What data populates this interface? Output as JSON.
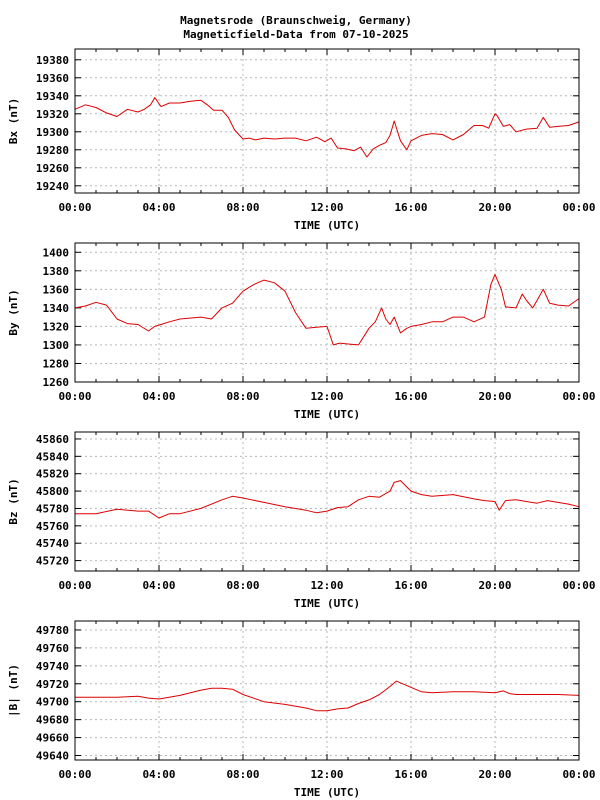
{
  "title_line1": "Magnetsrode (Braunschweig, Germany)",
  "title_line2": "Magneticfield-Data from 07-10-2025",
  "trace_color": "#dd0000",
  "chart_data": [
    {
      "type": "line",
      "ylabel": "Bx (nT)",
      "xlabel": "TIME (UTC)",
      "xticks": [
        "00:00",
        "04:00",
        "08:00",
        "12:00",
        "16:00",
        "20:00",
        "00:00"
      ],
      "xlim": [
        0,
        24
      ],
      "ylim": [
        19232,
        19392
      ],
      "yticks": [
        19240,
        19260,
        19280,
        19300,
        19320,
        19340,
        19360,
        19380
      ],
      "x": [
        0,
        0.5,
        1,
        1.5,
        2,
        2.5,
        3,
        3.3,
        3.6,
        3.8,
        4.1,
        4.5,
        5,
        5.5,
        6,
        6.3,
        6.6,
        7,
        7.3,
        7.6,
        8,
        8.3,
        8.6,
        9,
        9.5,
        10,
        10.5,
        11,
        11.5,
        11.9,
        12.2,
        12.5,
        12.9,
        13.3,
        13.6,
        13.9,
        14.2,
        14.5,
        14.8,
        15,
        15.2,
        15.5,
        15.8,
        16,
        16.5,
        17,
        17.5,
        18,
        18.5,
        19,
        19.4,
        19.7,
        20,
        20.1,
        20.4,
        20.7,
        21,
        21.5,
        22,
        22.3,
        22.6,
        23,
        23.5,
        24
      ],
      "y": [
        19325,
        19330,
        19327,
        19321,
        19317,
        19325,
        19322,
        19325,
        19330,
        19338,
        19328,
        19332,
        19332,
        19334,
        19335,
        19330,
        19324,
        19324,
        19316,
        19302,
        19292,
        19293,
        19291,
        19293,
        19292,
        19293,
        19293,
        19290,
        19294,
        19289,
        19293,
        19282,
        19281,
        19279,
        19283,
        19272,
        19281,
        19285,
        19288,
        19296,
        19312,
        19290,
        19280,
        19290,
        19296,
        19298,
        19297,
        19291,
        19297,
        19307,
        19307,
        19304,
        19320,
        19318,
        19306,
        19308,
        19300,
        19303,
        19304,
        19316,
        19305,
        19306,
        19307,
        19311
      ],
      "grid": true
    },
    {
      "type": "line",
      "ylabel": "By (nT)",
      "xlabel": "TIME (UTC)",
      "xticks": [
        "00:00",
        "04:00",
        "08:00",
        "12:00",
        "16:00",
        "20:00",
        "00:00"
      ],
      "xlim": [
        0,
        24
      ],
      "ylim": [
        1260,
        1410
      ],
      "yticks": [
        1260,
        1280,
        1300,
        1320,
        1340,
        1360,
        1380,
        1400
      ],
      "x": [
        0,
        0.5,
        1,
        1.5,
        2,
        2.5,
        3,
        3.5,
        3.8,
        4.1,
        4.5,
        5,
        6,
        6.5,
        7,
        7.5,
        8,
        8.5,
        9,
        9.5,
        10,
        10.5,
        11,
        11.5,
        12,
        12.3,
        12.6,
        13,
        13.5,
        14,
        14.3,
        14.6,
        14.8,
        15,
        15.2,
        15.5,
        15.8,
        16,
        16.5,
        17,
        17.5,
        18,
        18.5,
        19,
        19.5,
        19.8,
        20,
        20.3,
        20.5,
        21,
        21.3,
        21.5,
        21.8,
        22,
        22.3,
        22.6,
        23,
        23.5,
        24
      ],
      "y": [
        1340,
        1342,
        1346,
        1343,
        1328,
        1323,
        1322,
        1315,
        1320,
        1322,
        1325,
        1328,
        1330,
        1328,
        1340,
        1345,
        1358,
        1365,
        1370,
        1367,
        1358,
        1335,
        1318,
        1319,
        1320,
        1300,
        1302,
        1301,
        1300,
        1318,
        1325,
        1340,
        1328,
        1322,
        1330,
        1313,
        1318,
        1320,
        1322,
        1325,
        1325,
        1330,
        1330,
        1325,
        1330,
        1365,
        1376,
        1360,
        1341,
        1340,
        1355,
        1348,
        1340,
        1348,
        1360,
        1345,
        1343,
        1342,
        1350
      ],
      "grid": true
    },
    {
      "type": "line",
      "ylabel": "Bz (nT)",
      "xlabel": "TIME (UTC)",
      "xticks": [
        "00:00",
        "04:00",
        "08:00",
        "12:00",
        "16:00",
        "20:00",
        "00:00"
      ],
      "xlim": [
        0,
        24
      ],
      "ylim": [
        45708,
        45868
      ],
      "yticks": [
        45720,
        45740,
        45760,
        45780,
        45800,
        45820,
        45840,
        45860
      ],
      "x": [
        0,
        1,
        2,
        3,
        3.5,
        4,
        4.5,
        5,
        6,
        7,
        7.5,
        8,
        9,
        10,
        11,
        11.5,
        12,
        12.5,
        13,
        13.5,
        14,
        14.5,
        15,
        15.2,
        15.5,
        16,
        16.5,
        17,
        18,
        19,
        19.5,
        20,
        20.2,
        20.5,
        21,
        21.5,
        22,
        22.5,
        23,
        23.5,
        24
      ],
      "y": [
        45774,
        45774,
        45779,
        45777,
        45777,
        45769,
        45774,
        45774,
        45780,
        45790,
        45794,
        45792,
        45787,
        45782,
        45778,
        45775,
        45777,
        45781,
        45782,
        45790,
        45794,
        45793,
        45800,
        45810,
        45812,
        45800,
        45796,
        45794,
        45796,
        45791,
        45789,
        45788,
        45778,
        45789,
        45790,
        45788,
        45786,
        45789,
        45787,
        45785,
        45782
      ],
      "grid": true
    },
    {
      "type": "line",
      "ylabel": "|B| (nT)",
      "xlabel": "TIME (UTC)",
      "xticks": [
        "00:00",
        "04:00",
        "08:00",
        "12:00",
        "16:00",
        "20:00",
        "00:00"
      ],
      "xlim": [
        0,
        24
      ],
      "ylim": [
        49635,
        49790
      ],
      "yticks": [
        49640,
        49660,
        49680,
        49700,
        49720,
        49740,
        49760,
        49780
      ],
      "x": [
        0,
        1,
        2,
        3,
        3.5,
        4,
        5,
        6,
        6.5,
        7,
        7.5,
        8,
        9,
        10,
        11,
        11.5,
        12,
        12.5,
        13,
        13.5,
        14,
        14.5,
        15,
        15.3,
        15.8,
        16.5,
        17,
        18,
        19,
        20,
        20.4,
        20.7,
        21,
        22,
        23,
        24
      ],
      "y": [
        49705,
        49705,
        49705,
        49706,
        49704,
        49703,
        49707,
        49713,
        49715,
        49715,
        49714,
        49708,
        49700,
        49697,
        49693,
        49690,
        49690,
        49692,
        49693,
        49698,
        49702,
        49708,
        49717,
        49723,
        49718,
        49711,
        49710,
        49711,
        49711,
        49710,
        49712,
        49709,
        49708,
        49708,
        49708,
        49707
      ],
      "grid": true
    }
  ]
}
